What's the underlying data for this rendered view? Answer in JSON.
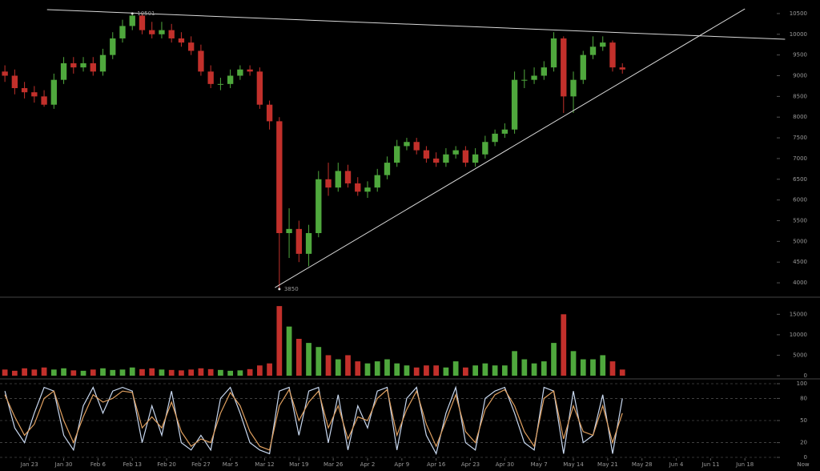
{
  "chart_data": [
    {
      "type": "candlestick",
      "x": [
        -5,
        -3,
        -1,
        1,
        3,
        5,
        7,
        9,
        11,
        13,
        15,
        17,
        19,
        21,
        23,
        25,
        27,
        29,
        31,
        33,
        35,
        37,
        39,
        41,
        43,
        45,
        47,
        49,
        51,
        53,
        55,
        57,
        59,
        61,
        63,
        65,
        67,
        69,
        71,
        73,
        75,
        77,
        79,
        81,
        83,
        85,
        87,
        89,
        91,
        93,
        95,
        97,
        99,
        101,
        103,
        105,
        107,
        109,
        111,
        113,
        115,
        117,
        119,
        121
      ],
      "open": [
        9100,
        9000,
        8700,
        8600,
        8500,
        8300,
        8900,
        9300,
        9200,
        9300,
        9100,
        9500,
        9900,
        10200,
        10450,
        10100,
        10000,
        10100,
        9900,
        9800,
        9600,
        9100,
        8800,
        8800,
        9000,
        9150,
        9100,
        8300,
        7900,
        5200,
        5300,
        4700,
        5200,
        6500,
        6300,
        6700,
        6400,
        6200,
        6300,
        6600,
        6900,
        7300,
        7400,
        7200,
        7000,
        6900,
        7100,
        7200,
        6900,
        7100,
        7400,
        7600,
        7700,
        8900,
        8900,
        9000,
        9200,
        9900,
        8500,
        8900,
        9500,
        9700,
        9800,
        9200
      ],
      "high": [
        9250,
        9150,
        8850,
        8750,
        8650,
        9050,
        9450,
        9450,
        9450,
        9450,
        9650,
        10050,
        10350,
        10501,
        10500,
        10300,
        10300,
        10250,
        10050,
        9950,
        9750,
        9250,
        8950,
        9150,
        9250,
        9250,
        9200,
        8400,
        8000,
        5800,
        5500,
        5400,
        6700,
        6900,
        6900,
        6850,
        6550,
        6450,
        6750,
        7050,
        7450,
        7500,
        7500,
        7300,
        7150,
        7250,
        7300,
        7300,
        7250,
        7550,
        7700,
        7850,
        9100,
        9150,
        9200,
        9350,
        10050,
        9950,
        9100,
        9600,
        9950,
        9950,
        9850,
        9300
      ],
      "low": [
        8850,
        8550,
        8450,
        8350,
        8250,
        8200,
        8800,
        9050,
        9100,
        9000,
        9000,
        9400,
        9800,
        10100,
        10000,
        9900,
        9900,
        9800,
        9700,
        9500,
        9000,
        8700,
        8650,
        8700,
        8900,
        9000,
        8200,
        7700,
        3850,
        4600,
        4500,
        4400,
        5100,
        6100,
        6200,
        6300,
        6100,
        6050,
        6200,
        6500,
        6800,
        7200,
        7100,
        6900,
        6800,
        6800,
        7000,
        6800,
        6800,
        7000,
        7300,
        7500,
        7600,
        8700,
        8800,
        8900,
        9100,
        8100,
        8100,
        8800,
        9400,
        9600,
        9100,
        9050
      ],
      "close": [
        9000,
        8700,
        8600,
        8500,
        8300,
        8900,
        9300,
        9200,
        9300,
        9100,
        9500,
        9900,
        10200,
        10450,
        10100,
        10000,
        10100,
        9900,
        9800,
        9600,
        9100,
        8800,
        8800,
        9000,
        9150,
        9100,
        8300,
        7900,
        5200,
        5300,
        4700,
        5200,
        6500,
        6300,
        6700,
        6400,
        6200,
        6300,
        6600,
        6900,
        7300,
        7400,
        7200,
        7000,
        6900,
        7100,
        7200,
        6900,
        7100,
        7400,
        7600,
        7700,
        8900,
        8900,
        9000,
        9200,
        9900,
        8500,
        8900,
        9500,
        9700,
        9800,
        9200,
        9150
      ],
      "up_color": "#4fa83d",
      "down_color": "#c2302b",
      "xlim": [
        -6,
        152.5
      ],
      "ylim": [
        3750,
        10750
      ],
      "yticks": [
        4000,
        4500,
        5000,
        5500,
        6000,
        6500,
        7000,
        7500,
        8000,
        8500,
        9000,
        9500,
        10000,
        10500
      ],
      "xticks": [
        {
          "value": 0,
          "label": "Jan 23"
        },
        {
          "value": 7,
          "label": "Jan 30"
        },
        {
          "value": 14,
          "label": "Feb 6"
        },
        {
          "value": 21,
          "label": "Feb 13"
        },
        {
          "value": 28,
          "label": "Feb 20"
        },
        {
          "value": 35,
          "label": "Feb 27"
        },
        {
          "value": 41,
          "label": "Mar 5"
        },
        {
          "value": 48,
          "label": "Mar 12"
        },
        {
          "value": 55,
          "label": "Mar 19"
        },
        {
          "value": 62,
          "label": "Mar 26"
        },
        {
          "value": 69,
          "label": "Apr 2"
        },
        {
          "value": 76,
          "label": "Apr 9"
        },
        {
          "value": 83,
          "label": "Apr 16"
        },
        {
          "value": 90,
          "label": "Apr 23"
        },
        {
          "value": 97,
          "label": "Apr 30"
        },
        {
          "value": 104,
          "label": "May 7"
        },
        {
          "value": 111,
          "label": "May 14"
        },
        {
          "value": 118,
          "label": "May 21"
        },
        {
          "value": 125,
          "label": "May 28"
        },
        {
          "value": 132,
          "label": "Jun 4"
        },
        {
          "value": 139,
          "label": "Jun 11"
        },
        {
          "value": 146,
          "label": "Jun 18"
        }
      ],
      "annotations": [
        {
          "x": 21,
          "y": 10501
        },
        {
          "x": 51,
          "y": 3850
        }
      ],
      "trendlines": [
        {
          "x": [
            3.6,
            154.2
          ],
          "y": [
            10595,
            9880
          ],
          "color": "#d8d8d8"
        },
        {
          "x": [
            50.1,
            146
          ],
          "y": [
            3885,
            10614
          ],
          "color": "#d8d8d8"
        }
      ]
    },
    {
      "type": "bar",
      "x": [
        -5,
        -3,
        -1,
        1,
        3,
        5,
        7,
        9,
        11,
        13,
        15,
        17,
        19,
        21,
        23,
        25,
        27,
        29,
        31,
        33,
        35,
        37,
        39,
        41,
        43,
        45,
        47,
        49,
        51,
        53,
        55,
        57,
        59,
        61,
        63,
        65,
        67,
        69,
        71,
        73,
        75,
        77,
        79,
        81,
        83,
        85,
        87,
        89,
        91,
        93,
        95,
        97,
        99,
        101,
        103,
        105,
        107,
        109,
        111,
        113,
        115,
        117,
        119,
        121
      ],
      "values": [
        1500,
        1200,
        1800,
        1500,
        2000,
        1500,
        1800,
        1300,
        1200,
        1500,
        1800,
        1400,
        1500,
        2000,
        1600,
        1800,
        1500,
        1400,
        1300,
        1500,
        1800,
        1600,
        1400,
        1200,
        1300,
        1600,
        2500,
        3000,
        17000,
        12000,
        9000,
        8000,
        7000,
        5000,
        4000,
        5000,
        3500,
        3000,
        3500,
        4000,
        3000,
        2500,
        2000,
        2500,
        2500,
        2000,
        3500,
        2000,
        2500,
        3000,
        2500,
        2500,
        6000,
        4000,
        3000,
        3500,
        8000,
        15000,
        6000,
        4000,
        4000,
        5000,
        3500,
        1500
      ],
      "xlim": [
        -6,
        152.5
      ],
      "ylim": [
        0,
        18000
      ],
      "yticks": [
        0,
        5000,
        10000,
        15000
      ]
    },
    {
      "type": "line",
      "x": [
        -5,
        -3,
        -1,
        1,
        3,
        5,
        7,
        9,
        11,
        13,
        15,
        17,
        19,
        21,
        23,
        25,
        27,
        29,
        31,
        33,
        35,
        37,
        39,
        41,
        43,
        45,
        47,
        49,
        51,
        53,
        55,
        57,
        59,
        61,
        63,
        65,
        67,
        69,
        71,
        73,
        75,
        77,
        79,
        81,
        83,
        85,
        87,
        89,
        91,
        93,
        95,
        97,
        99,
        101,
        103,
        105,
        107,
        109,
        111,
        113,
        115,
        117,
        119,
        121
      ],
      "series": [
        {
          "color": "#c8d8f0",
          "values": [
            90,
            40,
            20,
            60,
            95,
            90,
            30,
            10,
            70,
            95,
            60,
            90,
            95,
            90,
            20,
            70,
            30,
            90,
            20,
            10,
            30,
            10,
            80,
            95,
            60,
            20,
            10,
            5,
            90,
            95,
            30,
            90,
            95,
            20,
            85,
            10,
            70,
            40,
            90,
            95,
            10,
            80,
            95,
            30,
            5,
            60,
            95,
            20,
            10,
            80,
            90,
            95,
            60,
            20,
            10,
            95,
            90,
            5,
            90,
            20,
            30,
            85,
            5,
            80
          ]
        },
        {
          "color": "#e0a060",
          "values": [
            85,
            55,
            30,
            45,
            80,
            90,
            50,
            20,
            55,
            85,
            75,
            80,
            90,
            88,
            40,
            55,
            40,
            75,
            35,
            15,
            25,
            20,
            60,
            88,
            70,
            35,
            15,
            10,
            70,
            92,
            50,
            75,
            90,
            40,
            70,
            25,
            55,
            50,
            80,
            92,
            30,
            65,
            90,
            45,
            15,
            50,
            85,
            35,
            20,
            65,
            85,
            92,
            70,
            35,
            15,
            80,
            90,
            25,
            70,
            35,
            30,
            70,
            20,
            60
          ]
        }
      ],
      "xlim": [
        -6,
        152.5
      ],
      "ylim": [
        0,
        100
      ],
      "yticks": [
        0,
        20,
        50,
        80,
        100
      ],
      "grid": true
    }
  ],
  "now_label": "Now"
}
